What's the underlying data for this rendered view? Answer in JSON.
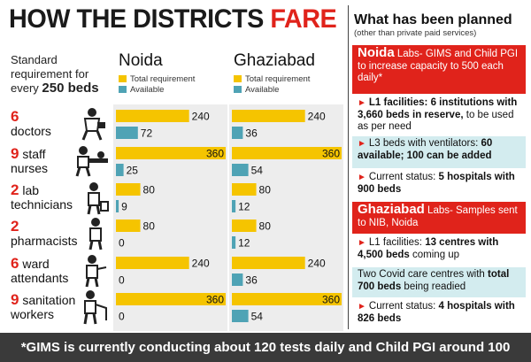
{
  "title_part1": "HOW THE DISTRICTS",
  "title_part2": "FARE",
  "std_line1": "Standard",
  "std_line2": "requirement for",
  "std_line3_prefix": "every ",
  "std_line3_bold": "250 beds",
  "legend": {
    "total": "Total requirement",
    "available": "Available"
  },
  "colors": {
    "total": "#f5c400",
    "available": "#4fa3b5",
    "accent": "#e0231b"
  },
  "rows": [
    {
      "num": "6",
      "line1": "doctors",
      "line2": "",
      "icon": "doctor-icon"
    },
    {
      "num": "9",
      "line1": "staff",
      "line2": "nurses",
      "icon": "nurse-icon"
    },
    {
      "num": "2",
      "line1": "lab",
      "line2": "technicians",
      "icon": "lab-technician-icon"
    },
    {
      "num": "2",
      "line1": "",
      "line2": "pharmacists",
      "icon": "pharmacist-icon"
    },
    {
      "num": "6",
      "line1": "ward",
      "line2": "attendants",
      "icon": "ward-attendant-icon"
    },
    {
      "num": "9",
      "line1": "sanitation",
      "line2": "workers",
      "icon": "sanitation-worker-icon"
    }
  ],
  "chart_data": [
    {
      "type": "bar",
      "title": "Noida",
      "categories": [
        "doctors",
        "staff nurses",
        "lab technicians",
        "pharmacists",
        "ward attendants",
        "sanitation workers"
      ],
      "series": [
        {
          "name": "Total requirement",
          "values": [
            240,
            360,
            80,
            80,
            240,
            360
          ]
        },
        {
          "name": "Available",
          "values": [
            72,
            25,
            9,
            0,
            0,
            0
          ]
        }
      ],
      "xlim": [
        0,
        360
      ]
    },
    {
      "type": "bar",
      "title": "Ghaziabad",
      "categories": [
        "doctors",
        "staff nurses",
        "lab technicians",
        "pharmacists",
        "ward attendants",
        "sanitation workers"
      ],
      "series": [
        {
          "name": "Total requirement",
          "values": [
            240,
            360,
            80,
            80,
            240,
            360
          ]
        },
        {
          "name": "Available",
          "values": [
            36,
            54,
            12,
            12,
            36,
            54
          ]
        }
      ],
      "xlim": [
        0,
        360
      ]
    }
  ],
  "plan": {
    "title": "What has been planned",
    "subtitle": "(other than private paid services)",
    "noida_head": "Noida",
    "noida_text": " Labs- GIMS and Child PGI to increase capacity to 500 each daily*",
    "noida_l1_bold": "L1 facilities: 6 institutions with 3,660 beds in reserve,",
    "noida_l1_rest": " to be used as per need",
    "noida_l3_prefix": "L3 beds with ventilators: ",
    "noida_l3_bold": "60 available; 100 can be added",
    "noida_status_prefix": "Current status: ",
    "noida_status_bold": "5 hospitals with 900 beds",
    "gzb_head": "Ghaziabad",
    "gzb_text": " Labs- Samples sent to NIB, Noida",
    "gzb_l1_prefix": "L1 facilities: ",
    "gzb_l1_bold": "13 centres with 4,500 beds",
    "gzb_l1_rest": " coming up",
    "gzb_covid_prefix": "Two Covid care centres with ",
    "gzb_covid_bold": "total 700 beds",
    "gzb_covid_rest": " being readied",
    "gzb_status_prefix": "Current status: ",
    "gzb_status_bold": "4 hospitals with 826 beds"
  },
  "footnote": "*GIMS is currently conducting about 120 tests daily and Child PGI around 100"
}
